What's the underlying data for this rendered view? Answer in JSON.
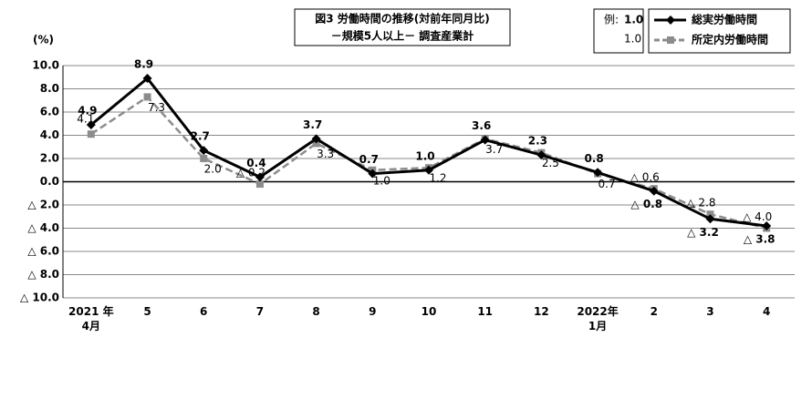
{
  "chart_data": {
    "type": "line",
    "title": "図3 労働時間の推移(対前年同月比)",
    "subtitle": "－規模5人以上－ 調査産業計",
    "y_label": "(%)",
    "legend_example": {
      "label": "例:",
      "bold": "1.0",
      "normal": "1.0"
    },
    "categories": [
      "2021 年\n4月",
      "5",
      "6",
      "7",
      "8",
      "9",
      "10",
      "11",
      "12",
      "2022年\n1月",
      "2",
      "3",
      "4"
    ],
    "series": [
      {
        "name": "総実労働時間",
        "color": "#000000",
        "values": [
          4.9,
          8.9,
          2.7,
          0.4,
          3.7,
          0.7,
          1.0,
          3.6,
          2.3,
          0.8,
          -0.8,
          -3.2,
          -3.8
        ],
        "value_labels": [
          "4.9",
          "8.9",
          "2.7",
          "0.4",
          "3.7",
          "0.7",
          "1.0",
          "3.6",
          "2.3",
          "0.8",
          "△ 0.8",
          "△ 3.2",
          "△ 3.8"
        ]
      },
      {
        "name": "所定内労働時間",
        "color": "#8c8c8c",
        "values": [
          4.1,
          7.3,
          2.0,
          -0.2,
          3.3,
          1.0,
          1.2,
          3.7,
          2.5,
          0.7,
          -0.6,
          -2.8,
          -4.0
        ],
        "value_labels": [
          "4.1",
          "7.3",
          "2.0",
          "△ 0.2",
          "3.3",
          "1.0",
          "1.2",
          "3.7",
          "2.5",
          "0.7",
          "△ 0.6",
          "△ 2.8",
          "△ 4.0"
        ]
      }
    ],
    "ylim": [
      -10,
      10
    ],
    "yticks": [
      {
        "value": 10,
        "label": "10.0"
      },
      {
        "value": 8,
        "label": "8.0"
      },
      {
        "value": 6,
        "label": "6.0"
      },
      {
        "value": 4,
        "label": "4.0"
      },
      {
        "value": 2,
        "label": "2.0"
      },
      {
        "value": 0,
        "label": "0.0"
      },
      {
        "value": -2,
        "label": "△ 2.0"
      },
      {
        "value": -4,
        "label": "△ 4.0"
      },
      {
        "value": -6,
        "label": "△ 6.0"
      },
      {
        "value": -8,
        "label": "△ 8.0"
      },
      {
        "value": -10,
        "label": "△ 10.0"
      }
    ],
    "grid": true
  }
}
